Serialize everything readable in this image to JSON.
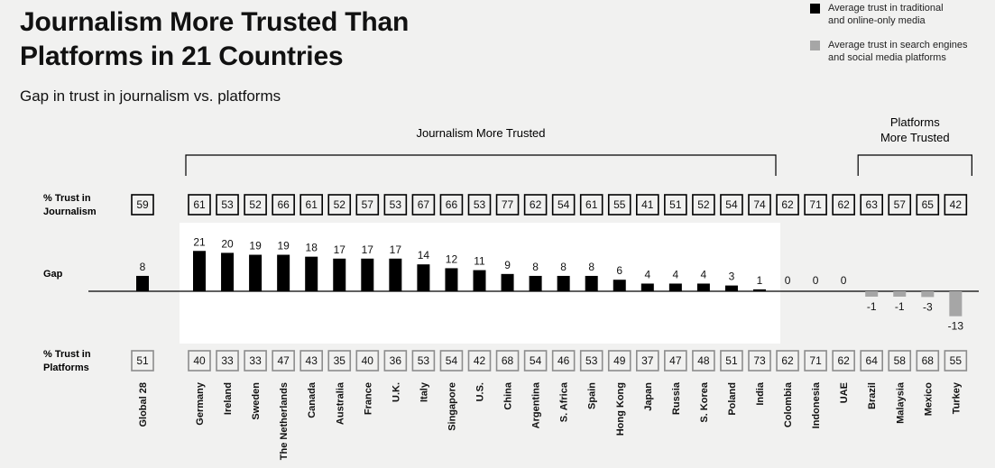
{
  "header": {
    "title_line1": "Journalism More Trusted Than",
    "title_line2": "Platforms in 21 Countries",
    "subtitle": "Gap in trust in journalism vs. platforms"
  },
  "legend": {
    "journalism_line1": "Average trust in traditional",
    "journalism_line2": "and online-only media",
    "platforms_line1": "Average trust in search engines",
    "platforms_line2": "and social media platforms"
  },
  "colors": {
    "journalism": "#000000",
    "platforms": "#a6a6a6",
    "highlight_panel": "#ffffff",
    "background": "#f1f1f0"
  },
  "chart_data": {
    "type": "bar",
    "title": "Journalism More Trusted Than Platforms in 21 Countries",
    "subtitle": "Gap in trust in journalism vs. platforms",
    "group_labels": {
      "journalism_more_trusted": "Journalism More Trusted",
      "platforms_more_trusted_line1": "Platforms",
      "platforms_more_trusted_line2": "More Trusted"
    },
    "row_labels": {
      "journalism_line1": "% Trust in",
      "journalism_line2": "Journalism",
      "gap": "Gap",
      "platforms_line1": "% Trust in",
      "platforms_line2": "Platforms"
    },
    "categories": [
      "Global 28",
      "Germany",
      "Ireland",
      "Sweden",
      "The Netherlands",
      "Canada",
      "Australia",
      "France",
      "U.K.",
      "Italy",
      "Singapore",
      "U.S.",
      "China",
      "Argentina",
      "S. Africa",
      "Spain",
      "Hong Kong",
      "Japan",
      "Russia",
      "S. Korea",
      "Poland",
      "India",
      "Colombia",
      "Indonesia",
      "UAE",
      "Brazil",
      "Malaysia",
      "Mexico",
      "Turkey"
    ],
    "series": [
      {
        "name": "% Trust in Journalism",
        "values": [
          59,
          61,
          53,
          52,
          66,
          61,
          52,
          57,
          53,
          67,
          66,
          53,
          77,
          62,
          54,
          61,
          55,
          41,
          51,
          52,
          54,
          74,
          62,
          71,
          62,
          63,
          57,
          65,
          42
        ]
      },
      {
        "name": "Gap",
        "values": [
          8,
          21,
          20,
          19,
          19,
          18,
          17,
          17,
          17,
          14,
          12,
          11,
          9,
          8,
          8,
          8,
          6,
          4,
          4,
          4,
          3,
          1,
          0,
          0,
          0,
          -1,
          -1,
          -3,
          -13
        ]
      },
      {
        "name": "% Trust in Platforms",
        "values": [
          51,
          40,
          33,
          33,
          47,
          43,
          35,
          40,
          36,
          53,
          54,
          42,
          68,
          54,
          46,
          53,
          49,
          37,
          47,
          48,
          51,
          73,
          62,
          71,
          62,
          64,
          58,
          68,
          55
        ]
      }
    ],
    "ylim": [
      -13,
      21
    ],
    "xlabel": "",
    "ylabel": ""
  }
}
